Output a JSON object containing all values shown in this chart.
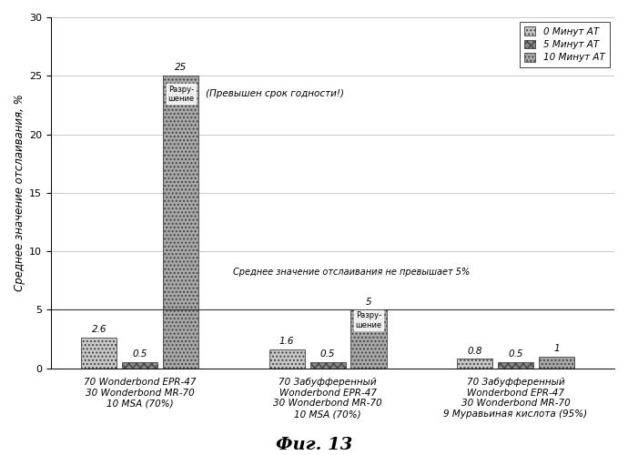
{
  "title": "Фиг. 13",
  "ylabel": "Среднее значение отслаивания, %",
  "ylim": [
    0,
    30
  ],
  "yticks": [
    0,
    5,
    10,
    15,
    20,
    25,
    30
  ],
  "groups": [
    "70 Wonderbond EPR-47\n30 Wonderbond MR-70\n10 MSA (70%)",
    "70 Забуфференный\nWonderbond EPR-47\n30 Wonderbond MR-70\n10 MSA (70%)",
    "70 Забуфференный\nWonderbond EPR-47\n30 Wonderbond MR-70\n9 Муравьиная кислота (95%)"
  ],
  "series": [
    {
      "label": "0 Минут АТ",
      "values": [
        2.6,
        1.6,
        0.8
      ]
    },
    {
      "label": "5 Минут АТ",
      "values": [
        0.5,
        0.5,
        0.5
      ]
    },
    {
      "label": "10 Минут АТ",
      "values": [
        25,
        5,
        1
      ]
    }
  ],
  "bar_width": 0.18,
  "group_centers": [
    0.35,
    1.3,
    2.25
  ],
  "annotation_shelf_life": "(Превышен срок годности!)",
  "annotation_avg": "Среднее значение отслаивания не превышает 5%",
  "razrushenie_text": "Разру-\nшение",
  "background_color": "#ffffff",
  "grid_color": "#b0b0b0",
  "hline_y": 5,
  "label_values": [
    "2.6",
    "0.5",
    "1.6",
    "0.5",
    "25",
    "0.8",
    "0.5",
    "1",
    "5"
  ]
}
